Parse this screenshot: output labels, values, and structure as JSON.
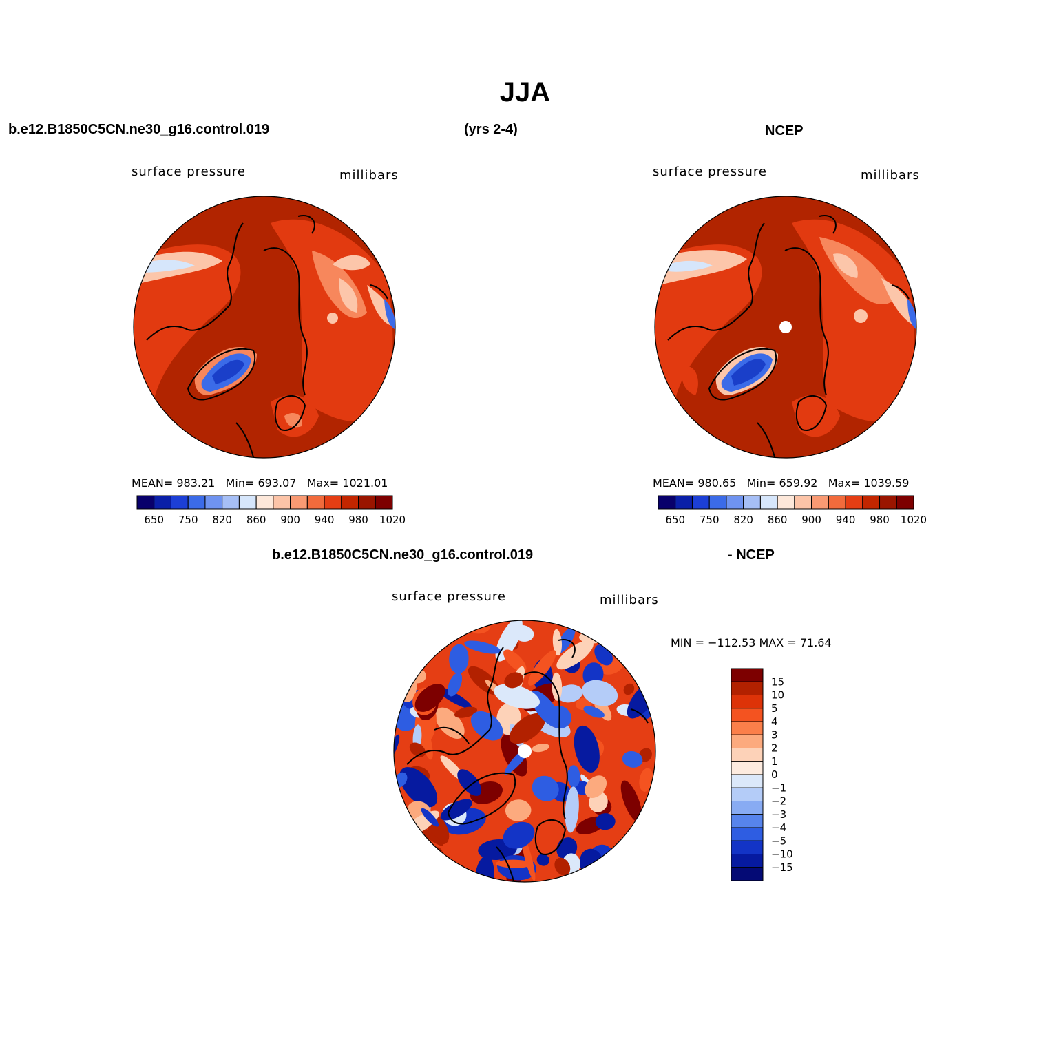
{
  "title": "JJA",
  "header": {
    "case_name": "b.e12.B1850C5CN.ne30_g16.control.019",
    "years": "(yrs 2-4)",
    "obs_name": "NCEP"
  },
  "panels": [
    {
      "id": "model",
      "variable_label": "surface pressure",
      "units_label": "millibars",
      "stats": {
        "mean_label": "MEAN=",
        "mean": "983.21",
        "min_label": "Min=",
        "min": "693.07",
        "max_label": "Max=",
        "max": "1021.01"
      }
    },
    {
      "id": "obs",
      "variable_label": "surface pressure",
      "units_label": "millibars",
      "stats": {
        "mean_label": "MEAN=",
        "mean": "980.65",
        "min_label": "Min=",
        "min": "659.92",
        "max_label": "Max=",
        "max": "1039.59"
      }
    }
  ],
  "diff_panel": {
    "title_left": "b.e12.B1850C5CN.ne30_g16.control.019",
    "title_right": "- NCEP",
    "variable_label": "surface pressure",
    "units_label": "millibars",
    "range_text": "MIN = −112.53 MAX =   71.64"
  },
  "colorbar_abs": {
    "colors": [
      "#08006b",
      "#0a1fa8",
      "#1c3fd6",
      "#3b6be8",
      "#6f93f0",
      "#a6bff6",
      "#d6e6fb",
      "#fde8da",
      "#fcc4a8",
      "#f99a73",
      "#f26b3c",
      "#e53e14",
      "#c32600",
      "#9a1500",
      "#7d0000"
    ],
    "tick_labels": [
      "650",
      "750",
      "820",
      "860",
      "900",
      "940",
      "980",
      "1020"
    ]
  },
  "colorbar_diff": {
    "colors": [
      "#7d0000",
      "#b22100",
      "#dd3308",
      "#f45320",
      "#fb7f4a",
      "#fcaa7e",
      "#fdd2b8",
      "#fdebdf",
      "#dbe8fa",
      "#b4ccf8",
      "#88abf3",
      "#5784ec",
      "#2e5de2",
      "#1334c6",
      "#061aa0",
      "#040a75"
    ],
    "tick_labels": [
      "15",
      "10",
      "5",
      "4",
      "3",
      "2",
      "1",
      "0",
      "−1",
      "−2",
      "−3",
      "−4",
      "−5",
      "−10",
      "−15"
    ]
  },
  "map_palette": {
    "ocean_high": "#b12400",
    "land_mid": "#e23a10",
    "land_light": "#f7875c",
    "land_pale": "#fcc6aa",
    "low_blue": "#3b6be8",
    "low_dark": "#1a3fc9",
    "pale_blue": "#d6e6fb"
  }
}
